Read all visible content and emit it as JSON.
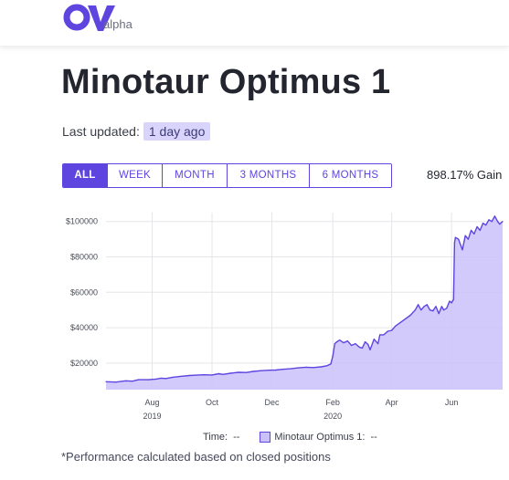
{
  "brand": {
    "logo_text": "alpha",
    "color": "#5e45e0"
  },
  "page": {
    "title": "Minotaur Optimus 1",
    "updated_label": "Last updated:",
    "updated_value": "1 day ago"
  },
  "range_buttons": [
    {
      "label": "ALL",
      "active": true
    },
    {
      "label": "WEEK",
      "active": false
    },
    {
      "label": "MONTH",
      "active": false
    },
    {
      "label": "3 MONTHS",
      "active": false
    },
    {
      "label": "6 MONTHS",
      "active": false
    }
  ],
  "gain": "898.17% Gain",
  "legend": {
    "time_label": "Time:",
    "time_value": "--",
    "series_label": "Minotaur Optimus 1:",
    "series_value": "--"
  },
  "footnote": "*Performance calculated based on closed positions",
  "chart_data": {
    "type": "area",
    "ylim": [
      5000,
      105000
    ],
    "xlim": [
      "2019-06-15",
      "2020-07-23"
    ],
    "y_ticks": [
      {
        "value": 20000,
        "label": "$20000"
      },
      {
        "value": 40000,
        "label": "$40000"
      },
      {
        "value": 60000,
        "label": "$60000"
      },
      {
        "value": 80000,
        "label": "$80000"
      },
      {
        "value": 100000,
        "label": "$100000"
      }
    ],
    "x_ticks": [
      {
        "date": "2019-08-01",
        "label": "Aug",
        "sublabel": "2019"
      },
      {
        "date": "2019-10-01",
        "label": "Oct",
        "sublabel": ""
      },
      {
        "date": "2019-12-01",
        "label": "Dec",
        "sublabel": ""
      },
      {
        "date": "2020-02-01",
        "label": "Feb",
        "sublabel": "2020"
      },
      {
        "date": "2020-04-01",
        "label": "Apr",
        "sublabel": ""
      },
      {
        "date": "2020-06-01",
        "label": "Jun",
        "sublabel": ""
      }
    ],
    "grid": true,
    "line_color": "#5e45e0",
    "fill_color": "#c9c1fa",
    "series": [
      {
        "x": [
          "2019-06-15",
          "2019-06-25",
          "2019-07-05",
          "2019-07-12",
          "2019-07-18",
          "2019-07-28",
          "2019-08-05",
          "2019-08-10",
          "2019-08-15",
          "2019-08-22",
          "2019-08-30",
          "2019-09-08",
          "2019-09-15",
          "2019-09-22",
          "2019-10-01",
          "2019-10-08",
          "2019-10-12",
          "2019-10-20",
          "2019-10-28",
          "2019-11-05",
          "2019-11-12",
          "2019-11-20",
          "2019-11-28",
          "2019-12-05",
          "2019-12-12",
          "2019-12-20",
          "2019-12-28",
          "2020-01-05",
          "2020-01-12",
          "2020-01-20",
          "2020-01-26",
          "2020-01-30",
          "2020-02-01",
          "2020-02-03",
          "2020-02-05",
          "2020-02-08",
          "2020-02-12",
          "2020-02-16",
          "2020-02-20",
          "2020-02-24",
          "2020-02-28",
          "2020-03-02",
          "2020-03-05",
          "2020-03-08",
          "2020-03-10",
          "2020-03-14",
          "2020-03-18",
          "2020-03-20",
          "2020-03-24",
          "2020-03-28",
          "2020-04-01",
          "2020-04-05",
          "2020-04-10",
          "2020-04-15",
          "2020-04-20",
          "2020-04-25",
          "2020-04-28",
          "2020-05-01",
          "2020-05-04",
          "2020-05-07",
          "2020-05-10",
          "2020-05-13",
          "2020-05-16",
          "2020-05-19",
          "2020-05-22",
          "2020-05-24",
          "2020-05-27",
          "2020-05-30",
          "2020-06-01",
          "2020-06-03",
          "2020-06-04",
          "2020-06-05",
          "2020-06-08",
          "2020-06-12",
          "2020-06-15",
          "2020-06-18",
          "2020-06-21",
          "2020-06-24",
          "2020-06-27",
          "2020-06-30",
          "2020-07-03",
          "2020-07-06",
          "2020-07-09",
          "2020-07-12",
          "2020-07-15",
          "2020-07-18",
          "2020-07-20",
          "2020-07-23"
        ],
        "y": [
          9500,
          9300,
          10000,
          9800,
          10600,
          10600,
          11000,
          11500,
          11300,
          12000,
          12500,
          13000,
          13200,
          13400,
          13300,
          14000,
          13600,
          14300,
          14800,
          14700,
          15300,
          15700,
          16000,
          16100,
          16500,
          16800,
          17300,
          17700,
          17500,
          17900,
          18500,
          19500,
          24000,
          31000,
          32000,
          33000,
          31500,
          32500,
          30000,
          31000,
          29000,
          28500,
          32000,
          30500,
          27500,
          33500,
          31000,
          36000,
          36000,
          38000,
          38500,
          41000,
          43000,
          45000,
          47000,
          50000,
          53000,
          50000,
          52000,
          53000,
          50000,
          49500,
          52000,
          48000,
          52000,
          50000,
          51000,
          55000,
          54000,
          56000,
          88000,
          91000,
          90000,
          84000,
          92000,
          90000,
          95000,
          93000,
          97000,
          95000,
          99000,
          98000,
          101000,
          100000,
          103000,
          100000,
          98500,
          100000
        ]
      }
    ]
  }
}
